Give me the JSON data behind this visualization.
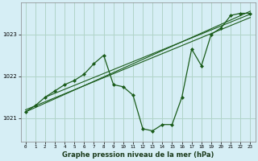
{
  "title": "Graphe pression niveau de la mer (hPa)",
  "bg_color": "#d6eef5",
  "grid_color": "#b0d4c8",
  "line_color": "#1a5c1a",
  "x_ticks": [
    0,
    1,
    2,
    3,
    4,
    5,
    6,
    7,
    8,
    9,
    10,
    11,
    12,
    13,
    14,
    15,
    16,
    17,
    18,
    19,
    20,
    21,
    22,
    23
  ],
  "y_ticks": [
    1021,
    1022,
    1023
  ],
  "ylim": [
    1020.45,
    1023.75
  ],
  "xlim": [
    -0.5,
    23.5
  ],
  "main_line": [
    [
      0,
      1021.15
    ],
    [
      1,
      1021.3
    ],
    [
      2,
      1021.5
    ],
    [
      3,
      1021.65
    ],
    [
      4,
      1021.8
    ],
    [
      5,
      1021.9
    ],
    [
      6,
      1022.05
    ],
    [
      7,
      1022.3
    ],
    [
      8,
      1022.5
    ],
    [
      9,
      1021.8
    ],
    [
      10,
      1021.75
    ],
    [
      11,
      1021.55
    ],
    [
      12,
      1020.75
    ],
    [
      13,
      1020.7
    ],
    [
      14,
      1020.85
    ],
    [
      15,
      1020.85
    ],
    [
      16,
      1021.5
    ],
    [
      17,
      1022.65
    ],
    [
      18,
      1022.25
    ],
    [
      19,
      1023.0
    ],
    [
      20,
      1023.15
    ],
    [
      21,
      1023.45
    ],
    [
      22,
      1023.5
    ],
    [
      23,
      1023.5
    ]
  ],
  "trend_line1": [
    [
      0,
      1021.15
    ],
    [
      23,
      1023.55
    ]
  ],
  "trend_line2": [
    [
      0,
      1021.2
    ],
    [
      23,
      1023.4
    ]
  ],
  "trend_line3": [
    [
      2,
      1021.5
    ],
    [
      23,
      1023.48
    ]
  ]
}
